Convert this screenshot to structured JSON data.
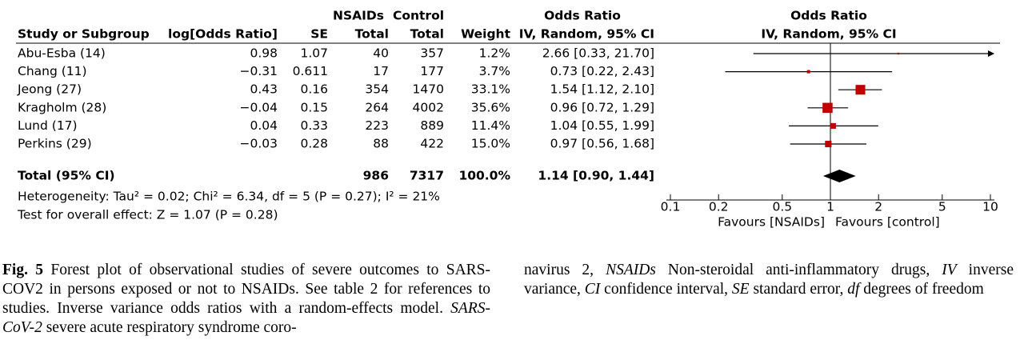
{
  "table": {
    "group_headers": {
      "nsaids": "NSAIDs",
      "control": "Control",
      "odds_ratio": "Odds Ratio"
    },
    "headers": [
      "Study or Subgroup",
      "log[Odds Ratio]",
      "SE",
      "Total",
      "Total",
      "Weight",
      "IV, Random, 95% CI"
    ],
    "rows": [
      [
        "Abu-Esba (14)",
        "0.98",
        "1.07",
        "40",
        "357",
        "1.2%",
        "2.66 [0.33, 21.70]"
      ],
      [
        "Chang (11)",
        "−0.31",
        "0.611",
        "17",
        "177",
        "3.7%",
        "0.73 [0.22, 2.43]"
      ],
      [
        "Jeong (27)",
        "0.43",
        "0.16",
        "354",
        "1470",
        "33.1%",
        "1.54 [1.12, 2.10]"
      ],
      [
        "Kragholm (28)",
        "−0.04",
        "0.15",
        "264",
        "4002",
        "35.6%",
        "0.96 [0.72, 1.29]"
      ],
      [
        "Lund (17)",
        "0.04",
        "0.33",
        "223",
        "889",
        "11.4%",
        "1.04 [0.55, 1.99]"
      ],
      [
        "Perkins (29)",
        "−0.03",
        "0.28",
        "88",
        "422",
        "15.0%",
        "0.97 [0.56, 1.68]"
      ]
    ],
    "total": {
      "label": "Total (95% CI)",
      "nsaids_total": "986",
      "control_total": "7317",
      "weight": "100.0%",
      "odds_ratio": "1.14 [0.90, 1.44]"
    },
    "heterogeneity": "Heterogeneity: Tau² = 0.02; Chi² = 6.34, df = 5 (P = 0.27); I² = 21%",
    "overall_effect": "Test for overall effect: Z = 1.07 (P = 0.28)"
  },
  "chart_data": {
    "type": "forest",
    "title": "Odds Ratio",
    "subtitle": "IV, Random, 95% CI",
    "log_scale": true,
    "xlim": [
      0.1,
      10
    ],
    "xticks": [
      0.1,
      0.2,
      0.5,
      1,
      2,
      5,
      10
    ],
    "xlabel_left": "Favours [NSAIDs]",
    "xlabel_right": "Favours [control]",
    "color": "#c00000",
    "estimates": [
      2.66,
      0.73,
      1.54,
      0.96,
      1.04,
      0.97
    ],
    "ci_lower": [
      0.33,
      0.22,
      1.12,
      0.72,
      0.55,
      0.56
    ],
    "ci_upper": [
      21.7,
      2.43,
      2.1,
      1.29,
      1.99,
      1.68
    ],
    "weights": [
      1.2,
      3.7,
      33.1,
      35.6,
      11.4,
      15.0
    ],
    "total": {
      "estimate": 1.14,
      "ci_lower": 0.9,
      "ci_upper": 1.44
    }
  },
  "caption": {
    "left": [
      "Fig. 5",
      " Forest plot of observational studies of severe outcomes to SARS-COV2 in persons exposed or not to NSAIDs. See table 2 for references to studies. Inverse variance odds ratios with a random-effects model. ",
      "SARS-CoV-2",
      " severe acute respiratory syndrome coro-"
    ],
    "right": [
      "navirus 2, ",
      "NSAIDs",
      " Non-steroidal anti-inflammatory drugs, ",
      "IV",
      " inverse variance, ",
      "CI",
      " confidence interval, ",
      "SE",
      " standard error, ",
      "df",
      " degrees of freedom"
    ]
  }
}
